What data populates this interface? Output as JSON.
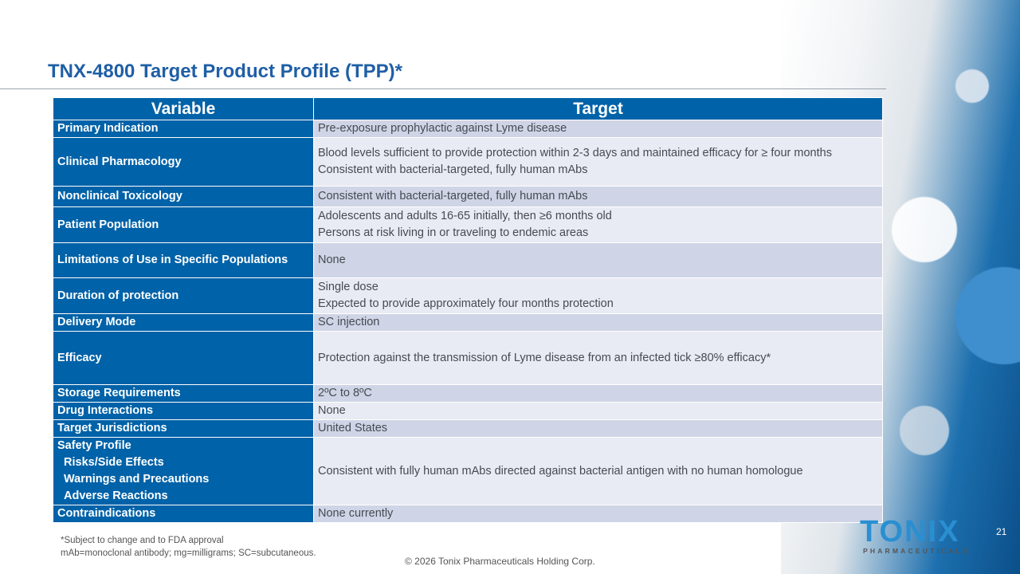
{
  "title": "TNX-4800 Target Product Profile (TPP)*",
  "table": {
    "headers": [
      "Variable",
      "Target"
    ],
    "rows": [
      {
        "variable": "Primary Indication",
        "target": [
          "Pre-exposure prophylactic against Lyme disease"
        ]
      },
      {
        "variable": "Clinical Pharmacology",
        "target": [
          "Blood levels sufficient to provide protection within 2-3 days and maintained efficacy for ≥ four months",
          "Consistent with bacterial-targeted, fully human mAbs"
        ]
      },
      {
        "variable": "Nonclinical Toxicology",
        "target": [
          "Consistent with bacterial-targeted, fully human mAbs"
        ]
      },
      {
        "variable": "Patient Population",
        "target": [
          "Adolescents and adults 16-65 initially, then ≥6 months old",
          "Persons at risk living in or traveling to endemic areas"
        ]
      },
      {
        "variable": "Limitations of Use in Specific Populations",
        "target": [
          "None"
        ]
      },
      {
        "variable": "Duration of protection",
        "target": [
          "Single dose",
          "Expected to provide approximately four months protection"
        ]
      },
      {
        "variable": "Delivery Mode",
        "target": [
          "SC injection"
        ]
      },
      {
        "variable": "Efficacy",
        "target": [
          "Protection against the transmission of Lyme disease from an infected tick ≥80% efficacy*"
        ]
      },
      {
        "variable": "Storage Requirements",
        "target": [
          "2ºC to 8ºC"
        ]
      },
      {
        "variable": "Drug Interactions",
        "target": [
          "None"
        ]
      },
      {
        "variable": "Target Jurisdictions",
        "target": [
          "United States"
        ]
      },
      {
        "variable": "Safety Profile",
        "sub": [
          "Risks/Side Effects",
          "Warnings and Precautions",
          "Adverse Reactions"
        ],
        "target": [
          "Consistent with fully human mAbs directed against bacterial antigen with no human homologue"
        ]
      },
      {
        "variable": "Contraindications",
        "target": [
          "None currently"
        ]
      }
    ]
  },
  "footnotes": [
    "*Subject to change and to FDA approval",
    "mAb=monoclonal antibody; mg=milligrams; SC=subcutaneous."
  ],
  "copyright": "© 2026 Tonix Pharmaceuticals Holding Corp.",
  "logo": {
    "name": "TONIX",
    "sub": "PHARMACEUTICALS"
  },
  "page_number": "21"
}
